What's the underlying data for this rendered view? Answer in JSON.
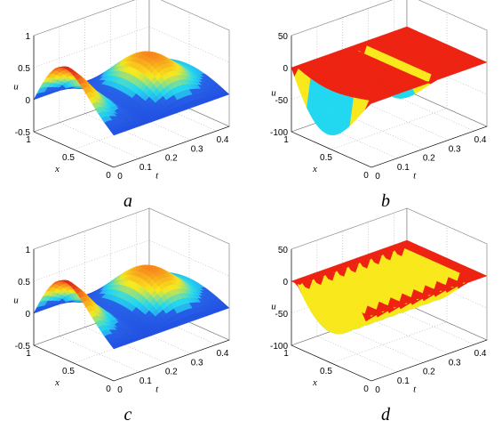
{
  "colors": {
    "low": "#1a3cdc",
    "mid_low": "#2f7df0",
    "cyan": "#22d8f0",
    "yellow": "#f8e81c",
    "orange": "#f8901c",
    "high": "#e02a14",
    "flat_red": "#ee2211",
    "grid": "#9a9a9a",
    "box": "#7a7a7a"
  },
  "chart_data": [
    {
      "type": "surface",
      "panel_label": "a",
      "xlabel": "x",
      "ylabel": "t",
      "zlabel": "u",
      "xlim": [
        0,
        1
      ],
      "ylim": [
        0,
        0.45
      ],
      "zlim": [
        -0.5,
        1
      ],
      "xticks": [
        "0",
        "0.5",
        "1"
      ],
      "yticks": [
        "0",
        "0.1",
        "0.2",
        "0.3",
        "0.4"
      ],
      "zticks": [
        "1",
        "0.5",
        "0",
        "-0.5"
      ],
      "grid": true,
      "surface": "smooth",
      "peak_u": 0.65,
      "ridge_count": 3
    },
    {
      "type": "surface",
      "panel_label": "b",
      "xlabel": "x",
      "ylabel": "t",
      "zlabel": "u",
      "xlim": [
        0,
        1
      ],
      "ylim": [
        0,
        0.45
      ],
      "zlim": [
        -100,
        50
      ],
      "xticks": [
        "0",
        "0.5",
        "1"
      ],
      "yticks": [
        "0",
        "0.1",
        "0.2",
        "0.3",
        "0.4"
      ],
      "zticks": [
        "50",
        "0",
        "-50",
        "-100"
      ],
      "grid": true,
      "surface": "spiky",
      "spike_count": 2,
      "min_u": -100
    },
    {
      "type": "surface",
      "panel_label": "c",
      "xlabel": "x",
      "ylabel": "t",
      "zlabel": "u",
      "xlim": [
        0,
        1
      ],
      "ylim": [
        0,
        0.45
      ],
      "zlim": [
        -0.5,
        1
      ],
      "xticks": [
        "0",
        "0.5",
        "1"
      ],
      "yticks": [
        "0",
        "0.1",
        "0.2",
        "0.3",
        "0.4"
      ],
      "zticks": [
        "1",
        "0.5",
        "0",
        "-0.5"
      ],
      "grid": true,
      "surface": "smooth",
      "peak_u": 0.65,
      "ridge_count": 3
    },
    {
      "type": "surface",
      "panel_label": "d",
      "xlabel": "x",
      "ylabel": "t",
      "zlabel": "u",
      "xlim": [
        0,
        1
      ],
      "ylim": [
        0,
        0.45
      ],
      "zlim": [
        -100,
        50
      ],
      "xticks": [
        "0",
        "0.5",
        "1"
      ],
      "yticks": [
        "0",
        "0.1",
        "0.2",
        "0.3",
        "0.4"
      ],
      "zticks": [
        "50",
        "0",
        "-50",
        "-100"
      ],
      "grid": true,
      "surface": "spiky",
      "spike_count": 9,
      "min_u": -100
    }
  ]
}
